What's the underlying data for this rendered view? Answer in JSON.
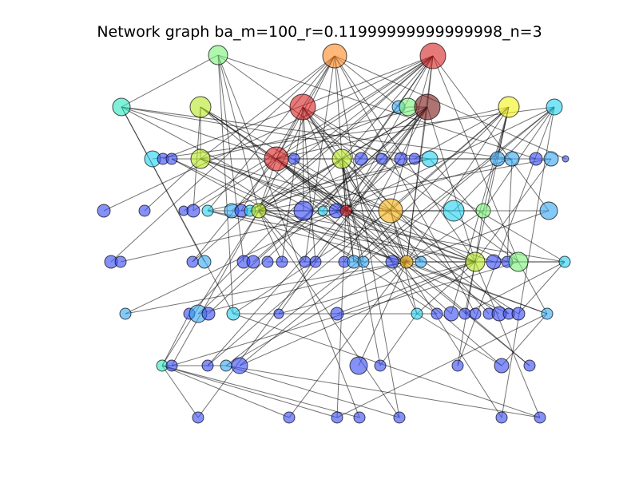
{
  "title": "Network graph ba_m=100_r=0.11999999999999998_n=3",
  "colors": {
    "edge": "#000000",
    "node_stroke": "#000000",
    "hub_red": "#d62728",
    "dark_red": "#7a1f1f",
    "orange": "#ff8c28",
    "gold": "#f5b31a",
    "yellow": "#f2f21a",
    "yellow_green": "#b8e62a",
    "light_green": "#7ef27e",
    "aqua": "#34e6c0",
    "cyan": "#28d2f0",
    "sky": "#3aa8f2",
    "blue": "#3a4ef2"
  },
  "graph": {
    "nodes": [
      {
        "id": "n0",
        "color": "light_green"
      },
      {
        "id": "n1",
        "color": "orange"
      },
      {
        "id": "n2",
        "color": "hub_red"
      },
      {
        "id": "n3",
        "color": "aqua"
      },
      {
        "id": "n4",
        "color": "yellow_green"
      },
      {
        "id": "n5",
        "color": "hub_red"
      },
      {
        "id": "n6",
        "color": "sky"
      },
      {
        "id": "n7",
        "color": "light_green"
      },
      {
        "id": "n8",
        "color": "dark_red"
      },
      {
        "id": "n9",
        "color": "yellow"
      },
      {
        "id": "n10",
        "color": "cyan"
      },
      {
        "id": "n11",
        "color": "cyan"
      },
      {
        "id": "n12",
        "color": "blue"
      },
      {
        "id": "n13",
        "color": "blue"
      },
      {
        "id": "n14",
        "color": "yellow_green"
      },
      {
        "id": "n15",
        "color": "hub_red"
      },
      {
        "id": "n16",
        "color": "blue"
      },
      {
        "id": "n17",
        "color": "yellow_green"
      },
      {
        "id": "n18",
        "color": "blue"
      },
      {
        "id": "n19",
        "color": "blue"
      },
      {
        "id": "n20",
        "color": "blue"
      },
      {
        "id": "n21",
        "color": "blue"
      },
      {
        "id": "n22",
        "color": "cyan"
      },
      {
        "id": "n23",
        "color": "sky"
      },
      {
        "id": "n24",
        "color": "sky"
      },
      {
        "id": "n25",
        "color": "blue"
      },
      {
        "id": "n26",
        "color": "sky"
      },
      {
        "id": "n27",
        "color": "blue"
      },
      {
        "id": "n28",
        "color": "blue"
      },
      {
        "id": "n29",
        "color": "blue"
      },
      {
        "id": "n30",
        "color": "blue"
      },
      {
        "id": "n31",
        "color": "blue"
      },
      {
        "id": "n32",
        "color": "cyan"
      },
      {
        "id": "n33",
        "color": "sky"
      },
      {
        "id": "n34",
        "color": "blue"
      },
      {
        "id": "n35",
        "color": "cyan"
      },
      {
        "id": "n36",
        "color": "yellow_green"
      },
      {
        "id": "n37",
        "color": "blue"
      },
      {
        "id": "n38",
        "color": "cyan"
      },
      {
        "id": "n39",
        "color": "blue"
      },
      {
        "id": "n40",
        "color": "hub_red"
      },
      {
        "id": "n41",
        "color": "gold"
      },
      {
        "id": "n42",
        "color": "cyan"
      },
      {
        "id": "n43",
        "color": "light_green"
      },
      {
        "id": "n44",
        "color": "sky"
      },
      {
        "id": "n45",
        "color": "blue"
      },
      {
        "id": "n46",
        "color": "blue"
      },
      {
        "id": "n47",
        "color": "blue"
      },
      {
        "id": "n48",
        "color": "sky"
      },
      {
        "id": "n49",
        "color": "blue"
      },
      {
        "id": "n50",
        "color": "blue"
      },
      {
        "id": "n51",
        "color": "blue"
      },
      {
        "id": "n52",
        "color": "blue"
      },
      {
        "id": "n53",
        "color": "blue"
      },
      {
        "id": "n54",
        "color": "blue"
      },
      {
        "id": "n55",
        "color": "blue"
      },
      {
        "id": "n56",
        "color": "sky"
      },
      {
        "id": "n57",
        "color": "sky"
      },
      {
        "id": "n58",
        "color": "blue"
      },
      {
        "id": "n59",
        "color": "gold"
      },
      {
        "id": "n60",
        "color": "sky"
      },
      {
        "id": "n61",
        "color": "yellow_green"
      },
      {
        "id": "n62",
        "color": "blue"
      },
      {
        "id": "n63",
        "color": "blue"
      },
      {
        "id": "n64",
        "color": "light_green"
      },
      {
        "id": "n65",
        "color": "cyan"
      },
      {
        "id": "n66",
        "color": "sky"
      },
      {
        "id": "n67",
        "color": "blue"
      },
      {
        "id": "n68",
        "color": "sky"
      },
      {
        "id": "n69",
        "color": "blue"
      },
      {
        "id": "n70",
        "color": "cyan"
      },
      {
        "id": "n71",
        "color": "blue"
      },
      {
        "id": "n72",
        "color": "blue"
      },
      {
        "id": "n73",
        "color": "cyan"
      },
      {
        "id": "n74",
        "color": "blue"
      },
      {
        "id": "n75",
        "color": "blue"
      },
      {
        "id": "n76",
        "color": "blue"
      },
      {
        "id": "n77",
        "color": "blue"
      },
      {
        "id": "n78",
        "color": "blue"
      },
      {
        "id": "n79",
        "color": "blue"
      },
      {
        "id": "n80",
        "color": "blue"
      },
      {
        "id": "n81",
        "color": "blue"
      },
      {
        "id": "n82",
        "color": "sky"
      },
      {
        "id": "n83",
        "color": "aqua"
      },
      {
        "id": "n84",
        "color": "blue"
      },
      {
        "id": "n85",
        "color": "blue"
      },
      {
        "id": "n86",
        "color": "sky"
      },
      {
        "id": "n87",
        "color": "blue"
      },
      {
        "id": "n88",
        "color": "blue"
      },
      {
        "id": "n89",
        "color": "blue"
      },
      {
        "id": "n90",
        "color": "blue"
      },
      {
        "id": "n91",
        "color": "blue"
      },
      {
        "id": "n92",
        "color": "blue"
      },
      {
        "id": "n93",
        "color": "blue"
      },
      {
        "id": "n94",
        "color": "blue"
      },
      {
        "id": "n95",
        "color": "blue"
      },
      {
        "id": "n96",
        "color": "blue"
      },
      {
        "id": "n97",
        "color": "blue"
      },
      {
        "id": "n98",
        "color": "blue"
      },
      {
        "id": "n99",
        "color": "blue"
      }
    ],
    "edges": [
      [
        "n0",
        "n3"
      ],
      [
        "n0",
        "n25"
      ],
      [
        "n0",
        "n49"
      ],
      [
        "n0",
        "n70"
      ],
      [
        "n0",
        "n96"
      ],
      [
        "n0",
        "n36"
      ],
      [
        "n0",
        "n18"
      ],
      [
        "n1",
        "n5"
      ],
      [
        "n1",
        "n15"
      ],
      [
        "n1",
        "n14"
      ],
      [
        "n1",
        "n40"
      ],
      [
        "n1",
        "n36"
      ],
      [
        "n1",
        "n61"
      ],
      [
        "n1",
        "n53"
      ],
      [
        "n1",
        "n77"
      ],
      [
        "n1",
        "n97"
      ],
      [
        "n1",
        "n6"
      ],
      [
        "n1",
        "n27"
      ],
      [
        "n1",
        "n32"
      ],
      [
        "n1",
        "n45"
      ],
      [
        "n2",
        "n8"
      ],
      [
        "n2",
        "n15"
      ],
      [
        "n2",
        "n40"
      ],
      [
        "n2",
        "n41"
      ],
      [
        "n2",
        "n59"
      ],
      [
        "n2",
        "n17"
      ],
      [
        "n2",
        "n36"
      ],
      [
        "n2",
        "n12"
      ],
      [
        "n2",
        "n18"
      ],
      [
        "n2",
        "n28"
      ],
      [
        "n2",
        "n33"
      ],
      [
        "n2",
        "n44"
      ],
      [
        "n2",
        "n38"
      ],
      [
        "n2",
        "n64"
      ],
      [
        "n2",
        "n30"
      ],
      [
        "n2",
        "n47"
      ],
      [
        "n3",
        "n22"
      ],
      [
        "n3",
        "n24"
      ],
      [
        "n3",
        "n48"
      ],
      [
        "n3",
        "n15"
      ],
      [
        "n3",
        "n59"
      ],
      [
        "n3",
        "n70"
      ],
      [
        "n4",
        "n14"
      ],
      [
        "n4",
        "n15"
      ],
      [
        "n4",
        "n40"
      ],
      [
        "n4",
        "n31"
      ],
      [
        "n4",
        "n79"
      ],
      [
        "n4",
        "n61"
      ],
      [
        "n4",
        "n91"
      ],
      [
        "n5",
        "n15"
      ],
      [
        "n5",
        "n40"
      ],
      [
        "n5",
        "n59"
      ],
      [
        "n5",
        "n17"
      ],
      [
        "n5",
        "n37"
      ],
      [
        "n5",
        "n52"
      ],
      [
        "n5",
        "n54"
      ],
      [
        "n5",
        "n64"
      ],
      [
        "n5",
        "n65"
      ],
      [
        "n5",
        "n78"
      ],
      [
        "n5",
        "n98"
      ],
      [
        "n5",
        "n34"
      ],
      [
        "n7",
        "n15"
      ],
      [
        "n7",
        "n8"
      ],
      [
        "n8",
        "n40"
      ],
      [
        "n8",
        "n17"
      ],
      [
        "n8",
        "n14"
      ],
      [
        "n8",
        "n59"
      ],
      [
        "n8",
        "n61"
      ],
      [
        "n8",
        "n36"
      ],
      [
        "n8",
        "n68"
      ],
      [
        "n8",
        "n69"
      ],
      [
        "n8",
        "n39"
      ],
      [
        "n8",
        "n50"
      ],
      [
        "n8",
        "n93"
      ],
      [
        "n8",
        "n55"
      ],
      [
        "n8",
        "n71"
      ],
      [
        "n9",
        "n41"
      ],
      [
        "n9",
        "n43"
      ],
      [
        "n9",
        "n21"
      ],
      [
        "n9",
        "n61"
      ],
      [
        "n9",
        "n56"
      ],
      [
        "n9",
        "n59"
      ],
      [
        "n9",
        "n23"
      ],
      [
        "n9",
        "n85"
      ],
      [
        "n9",
        "n75"
      ],
      [
        "n9",
        "n15"
      ],
      [
        "n10",
        "n11"
      ],
      [
        "n10",
        "n42"
      ],
      [
        "n10",
        "n43"
      ],
      [
        "n10",
        "n66"
      ],
      [
        "n10",
        "n86"
      ],
      [
        "n10",
        "n87"
      ],
      [
        "n10",
        "n98"
      ],
      [
        "n10",
        "n90"
      ],
      [
        "n13",
        "n15"
      ],
      [
        "n13",
        "n57"
      ],
      [
        "n13",
        "n80"
      ],
      [
        "n14",
        "n29"
      ],
      [
        "n14",
        "n61"
      ],
      [
        "n14",
        "n62"
      ],
      [
        "n14",
        "n74"
      ],
      [
        "n14",
        "n41"
      ],
      [
        "n15",
        "n31"
      ],
      [
        "n15",
        "n26"
      ],
      [
        "n15",
        "n36"
      ],
      [
        "n15",
        "n40"
      ],
      [
        "n15",
        "n47"
      ],
      [
        "n15",
        "n60"
      ],
      [
        "n15",
        "n63"
      ],
      [
        "n15",
        "n75"
      ],
      [
        "n15",
        "n81"
      ],
      [
        "n15",
        "n92"
      ],
      [
        "n16",
        "n17"
      ],
      [
        "n16",
        "n40"
      ],
      [
        "n17",
        "n35"
      ],
      [
        "n17",
        "n36"
      ],
      [
        "n17",
        "n40"
      ],
      [
        "n17",
        "n41"
      ],
      [
        "n17",
        "n56"
      ],
      [
        "n17",
        "n57"
      ],
      [
        "n17",
        "n67"
      ],
      [
        "n17",
        "n80"
      ],
      [
        "n17",
        "n89"
      ],
      [
        "n17",
        "n73"
      ],
      [
        "n19",
        "n36"
      ],
      [
        "n20",
        "n40"
      ],
      [
        "n22",
        "n32"
      ],
      [
        "n22",
        "n34"
      ],
      [
        "n22",
        "n64"
      ],
      [
        "n22",
        "n24"
      ],
      [
        "n24",
        "n39"
      ],
      [
        "n24",
        "n63"
      ],
      [
        "n26",
        "n36"
      ],
      [
        "n26",
        "n61"
      ],
      [
        "n32",
        "n40"
      ],
      [
        "n32",
        "n59"
      ],
      [
        "n32",
        "n61"
      ],
      [
        "n35",
        "n36"
      ],
      [
        "n35",
        "n61"
      ],
      [
        "n36",
        "n37"
      ],
      [
        "n36",
        "n52"
      ],
      [
        "n36",
        "n53"
      ],
      [
        "n36",
        "n65"
      ],
      [
        "n36",
        "n82"
      ],
      [
        "n36",
        "n83"
      ],
      [
        "n36",
        "n84"
      ],
      [
        "n36",
        "n97"
      ],
      [
        "n36",
        "n40"
      ],
      [
        "n38",
        "n40"
      ],
      [
        "n38",
        "n41"
      ],
      [
        "n40",
        "n41"
      ],
      [
        "n40",
        "n46"
      ],
      [
        "n40",
        "n56"
      ],
      [
        "n40",
        "n58"
      ],
      [
        "n40",
        "n61"
      ],
      [
        "n40",
        "n85"
      ],
      [
        "n40",
        "n92"
      ],
      [
        "n40",
        "n95"
      ],
      [
        "n40",
        "n43"
      ],
      [
        "n41",
        "n42"
      ],
      [
        "n41",
        "n59"
      ],
      [
        "n41",
        "n60"
      ],
      [
        "n41",
        "n70"
      ],
      [
        "n41",
        "n73"
      ],
      [
        "n43",
        "n59"
      ],
      [
        "n43",
        "n61"
      ],
      [
        "n44",
        "n40"
      ],
      [
        "n44",
        "n59"
      ],
      [
        "n59",
        "n61"
      ],
      [
        "n59",
        "n64"
      ],
      [
        "n59",
        "n65"
      ],
      [
        "n59",
        "n66"
      ],
      [
        "n59",
        "n68"
      ],
      [
        "n59",
        "n86"
      ],
      [
        "n59",
        "n88"
      ],
      [
        "n59",
        "n82"
      ],
      [
        "n59",
        "n94"
      ],
      [
        "n59",
        "n51"
      ],
      [
        "n61",
        "n72"
      ],
      [
        "n61",
        "n73"
      ],
      [
        "n61",
        "n76"
      ],
      [
        "n61",
        "n87"
      ],
      [
        "n61",
        "n90"
      ],
      [
        "n61",
        "n99"
      ],
      [
        "n61",
        "n71"
      ],
      [
        "n64",
        "n65"
      ],
      [
        "n64",
        "n82"
      ],
      [
        "n64",
        "n84"
      ],
      [
        "n65",
        "n76"
      ],
      [
        "n65",
        "n81"
      ],
      [
        "n70",
        "n74"
      ],
      [
        "n70",
        "n99"
      ],
      [
        "n73",
        "n89"
      ],
      [
        "n73",
        "n91"
      ],
      [
        "n83",
        "n86"
      ],
      [
        "n83",
        "n93"
      ],
      [
        "n83",
        "n94"
      ],
      [
        "n83",
        "n95"
      ],
      [
        "n83",
        "n96"
      ],
      [
        "n83",
        "n67"
      ],
      [
        "n86",
        "n97"
      ],
      [
        "n86",
        "n99"
      ],
      [
        "n82",
        "n91"
      ],
      [
        "n82",
        "n95"
      ]
    ]
  }
}
